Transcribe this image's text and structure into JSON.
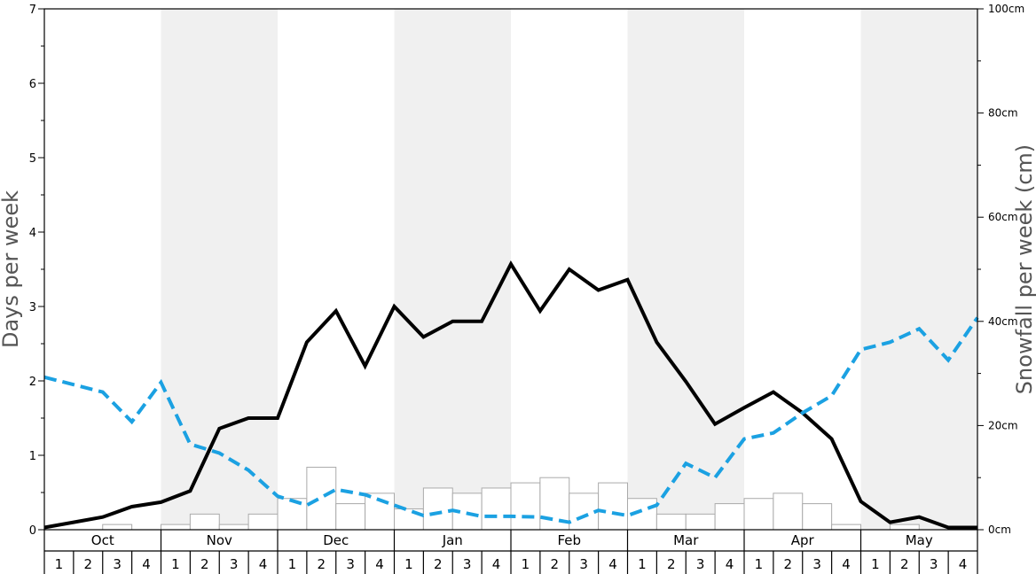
{
  "chart_data": {
    "type": "bar",
    "title": "",
    "ylabel_left": "Days per week",
    "ylabel_right": "Snowfall per week (cm)",
    "ylim_left": [
      0,
      7
    ],
    "ylim_right": [
      0,
      100
    ],
    "left_ticks": [
      "0",
      "1",
      "2",
      "3",
      "4",
      "5",
      "6",
      "7"
    ],
    "right_ticks": [
      "0cm",
      "20cm",
      "40cm",
      "60cm",
      "80cm",
      "100cm"
    ],
    "months": [
      "Oct",
      "Nov",
      "Dec",
      "Jan",
      "Feb",
      "Mar",
      "Apr",
      "May"
    ],
    "week_labels": [
      "1",
      "2",
      "3",
      "4"
    ],
    "shading": {
      "shaded_months": [
        "Nov",
        "Jan",
        "Mar",
        "May"
      ],
      "color": "#f0f0f0"
    },
    "series": [
      {
        "name": "",
        "type": "bar",
        "axis": "right",
        "color": "#ffffff",
        "stroke": "#aaaaaa",
        "values": [
          0,
          0,
          1,
          0,
          1,
          3,
          1,
          3,
          6,
          12,
          5,
          7,
          4,
          8,
          7,
          8,
          9,
          10,
          7,
          9,
          6,
          3,
          3,
          5,
          6,
          7,
          5,
          1,
          0,
          1,
          0,
          0
        ]
      },
      {
        "name": "",
        "type": "line",
        "axis": "left",
        "color": "#000000",
        "style": "solid",
        "values": [
          0.03,
          0.1,
          0.17,
          0.31,
          0.37,
          0.52,
          1.36,
          1.5,
          1.5,
          2.52,
          2.94,
          2.2,
          3.0,
          2.59,
          2.8,
          2.8,
          3.57,
          2.94,
          3.5,
          3.22,
          3.36,
          2.52,
          1.99,
          1.42,
          1.64,
          1.85,
          1.57,
          1.22,
          0.38,
          0.1,
          0.17,
          0.03,
          0.03
        ]
      },
      {
        "name": "",
        "type": "line",
        "axis": "left",
        "color": "#1ba1e2",
        "style": "dashed",
        "values": [
          2.05,
          1.95,
          1.85,
          1.45,
          1.98,
          1.15,
          1.03,
          0.8,
          0.45,
          0.33,
          0.54,
          0.47,
          0.33,
          0.19,
          0.26,
          0.18,
          0.18,
          0.17,
          0.1,
          0.26,
          0.19,
          0.33,
          0.89,
          0.7,
          1.22,
          1.3,
          1.57,
          1.8,
          2.42,
          2.52,
          2.7,
          2.28,
          2.85
        ]
      }
    ]
  }
}
